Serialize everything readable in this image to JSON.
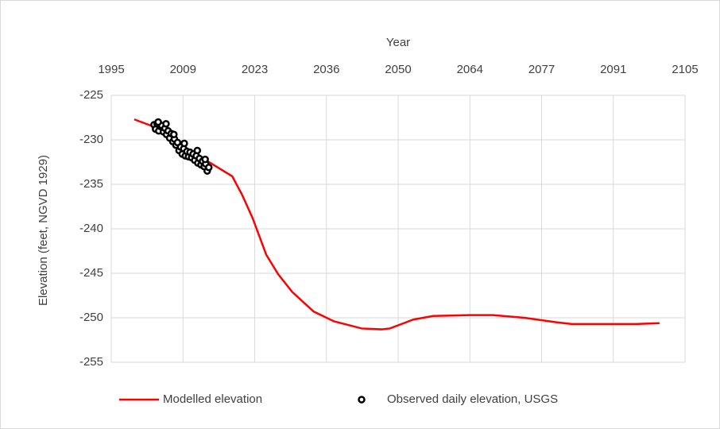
{
  "chart_data": {
    "type": "line",
    "x_label": "Year",
    "y_label": "Elevation (feet, NGVD 1929)",
    "xlim": [
      1995,
      2105
    ],
    "xticks": [
      1995,
      {
        "value": 2008.75,
        "label": "2009"
      },
      {
        "value": 2022.5,
        "label": "2023"
      },
      {
        "value": 2036.25,
        "label": "2036"
      },
      2050,
      {
        "value": 2063.75,
        "label": "2064"
      },
      {
        "value": 2077.5,
        "label": "2077"
      },
      {
        "value": 2091.25,
        "label": "2091"
      },
      2105
    ],
    "ylim": [
      -255,
      -225
    ],
    "yticks": [
      -225,
      -230,
      -235,
      -240,
      -245,
      -250,
      -255
    ],
    "grid": true,
    "legend": "bottom",
    "series": [
      {
        "name": "Modelled elevation",
        "color": "#ff0000",
        "style": "line",
        "x": [
          1999.4,
          2002.6,
          2009,
          2014,
          2018.2,
          2020.1,
          2022.1,
          2024.7,
          2027,
          2029.7,
          2033.8,
          2037.7,
          2043,
          2046.8,
          2048.4,
          2052.9,
          2056.7,
          2063.6,
          2068.2,
          2074.2,
          2080.3,
          2083.3,
          2095.5,
          2100.1
        ],
        "values": [
          -227.7,
          -228.4,
          -230.8,
          -232.6,
          -234.1,
          -236.2,
          -238.8,
          -242.9,
          -245.1,
          -247.1,
          -249.3,
          -250.4,
          -251.2,
          -251.3,
          -251.2,
          -250.2,
          -249.8,
          -249.7,
          -249.7,
          -250.0,
          -250.5,
          -250.7,
          -250.7,
          -250.6
        ]
      },
      {
        "name": "Observed daily elevation, USGS",
        "color": "#000000",
        "style": "marker",
        "x": [
          2003.2,
          2003.5,
          2003.8,
          2004.1,
          2004.4,
          2004.7,
          2005.0,
          2005.3,
          2005.6,
          2005.9,
          2006.2,
          2006.5,
          2006.8,
          2007.1,
          2007.4,
          2007.7,
          2008.0,
          2008.3,
          2008.6,
          2008.9,
          2009.2,
          2009.5,
          2009.8,
          2010.1,
          2010.4,
          2010.7,
          2011.0,
          2011.3,
          2011.6,
          2011.9,
          2012.2,
          2012.5,
          2012.8,
          2013.1,
          2013.4,
          2013.7,
          2004.0,
          2005.5,
          2007.0,
          2009.0,
          2011.5,
          2013.0
        ],
        "values": [
          -228.3,
          -228.8,
          -228.2,
          -229.0,
          -228.5,
          -228.4,
          -229.1,
          -228.7,
          -229.4,
          -229.0,
          -229.8,
          -229.3,
          -230.2,
          -229.9,
          -230.6,
          -230.3,
          -231.2,
          -230.8,
          -231.6,
          -231.0,
          -231.8,
          -231.3,
          -231.9,
          -231.4,
          -232.0,
          -231.6,
          -232.3,
          -231.8,
          -232.6,
          -232.1,
          -232.8,
          -232.4,
          -233.0,
          -232.7,
          -233.5,
          -233.1,
          -228.0,
          -228.2,
          -229.4,
          -230.4,
          -231.2,
          -232.2
        ]
      }
    ]
  }
}
